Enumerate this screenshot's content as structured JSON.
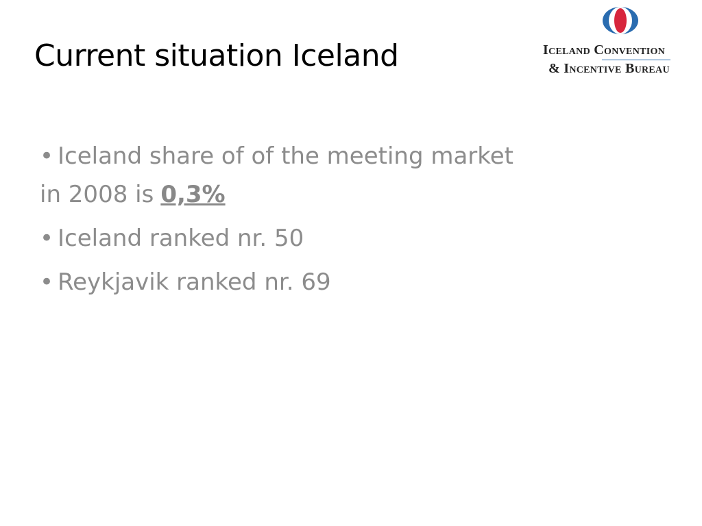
{
  "slide": {
    "title": "Current situation Iceland",
    "logo": {
      "line1": "Iceland Convention",
      "line2": "& Incentive Bureau"
    },
    "bullets": [
      {
        "lines": [
          "Iceland share of of the meeting market",
          "in 2008 is"
        ],
        "emphasis": "0,3%"
      },
      {
        "text": "Iceland ranked nr. 50"
      },
      {
        "text": "Reykjavik ranked nr. 69"
      }
    ]
  }
}
